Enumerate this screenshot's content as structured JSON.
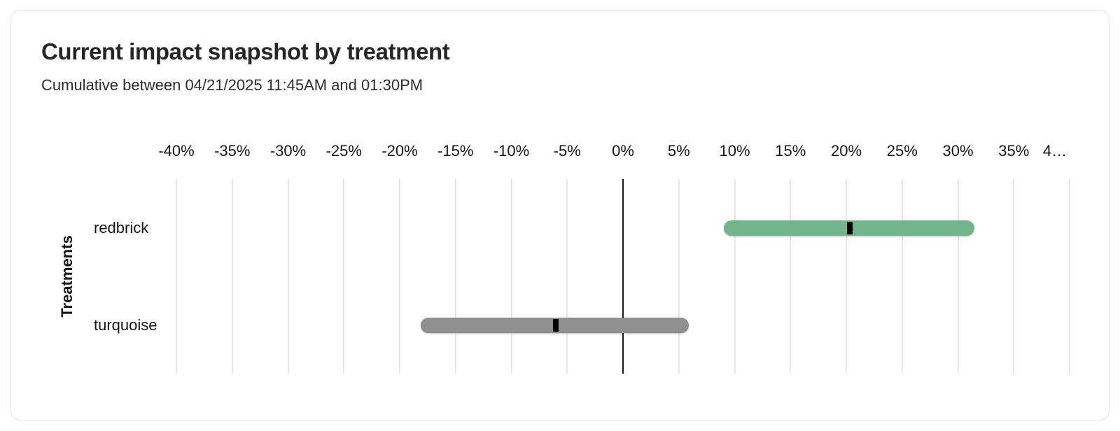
{
  "card": {
    "title": "Current impact snapshot by treatment",
    "subtitle": "Cumulative between 04/21/2025 11:45AM and 01:30PM"
  },
  "colors": {
    "positive_bar": "#72b48c",
    "neutral_bar": "#8f8f8f",
    "marker": "#000000",
    "gridline": "#e7e7e7",
    "zero_line": "#1a1a1a",
    "card_border": "#e3e3e3"
  },
  "chart_data": {
    "type": "bar",
    "orientation": "horizontal",
    "title": "Current impact snapshot by treatment",
    "subtitle": "Cumulative between 04/21/2025 11:45AM and 01:30PM",
    "xlabel": "",
    "ylabel": "Treatments",
    "x_unit": "%",
    "xlim": [
      -41,
      41
    ],
    "grid": true,
    "zero_line": true,
    "x_ticks": [
      {
        "value": -40,
        "label": "-40%"
      },
      {
        "value": -35,
        "label": "-35%"
      },
      {
        "value": -30,
        "label": "-30%"
      },
      {
        "value": -25,
        "label": "-25%"
      },
      {
        "value": -20,
        "label": "-20%"
      },
      {
        "value": -15,
        "label": "-15%"
      },
      {
        "value": -10,
        "label": "-10%"
      },
      {
        "value": -5,
        "label": "-5%"
      },
      {
        "value": 0,
        "label": "0%"
      },
      {
        "value": 5,
        "label": "5%"
      },
      {
        "value": 10,
        "label": "10%"
      },
      {
        "value": 15,
        "label": "15%"
      },
      {
        "value": 20,
        "label": "20%"
      },
      {
        "value": 25,
        "label": "25%"
      },
      {
        "value": 30,
        "label": "30%"
      },
      {
        "value": 35,
        "label": "35%"
      },
      {
        "value": 40,
        "label": "4…",
        "truncated": true
      }
    ],
    "categories": [
      "redbrick",
      "turquoise"
    ],
    "series": [
      {
        "name": "redbrick",
        "low": 9.0,
        "estimate": 20.3,
        "high": 31.5,
        "color": "#72b48c"
      },
      {
        "name": "turquoise",
        "low": -18.1,
        "estimate": -6.0,
        "high": 5.9,
        "color": "#8f8f8f"
      }
    ]
  }
}
